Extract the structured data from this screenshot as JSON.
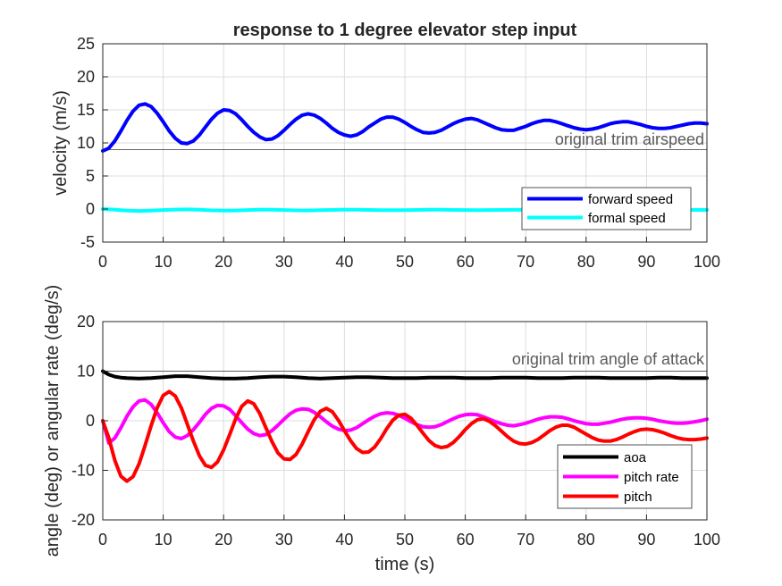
{
  "title": "response to 1 degree elevator step input",
  "chart_data": [
    {
      "type": "line",
      "xlabel": "",
      "ylabel": "velocity (m/s)",
      "xlim": [
        0,
        100
      ],
      "ylim": [
        -5,
        25
      ],
      "xticks": [
        0,
        10,
        20,
        30,
        40,
        50,
        60,
        70,
        80,
        90,
        100
      ],
      "yticks": [
        -5,
        0,
        5,
        10,
        15,
        20,
        25
      ],
      "grid": true,
      "legend_position": "bottom-right",
      "reference_line": {
        "y": 9,
        "label": "original trim airspeed"
      },
      "series": [
        {
          "name": "forward speed",
          "color": "#0000ff",
          "x": [
            0,
            1,
            2,
            3,
            4,
            5,
            6,
            7,
            8,
            9,
            10,
            11,
            12,
            13,
            14,
            15,
            16,
            17,
            18,
            19,
            20,
            21,
            22,
            23,
            24,
            25,
            26,
            27,
            28,
            29,
            30,
            31,
            32,
            33,
            34,
            35,
            36,
            37,
            38,
            39,
            40,
            41,
            42,
            43,
            44,
            45,
            46,
            47,
            48,
            49,
            50,
            51,
            52,
            53,
            54,
            55,
            56,
            57,
            58,
            59,
            60,
            61,
            62,
            63,
            64,
            65,
            66,
            67,
            68,
            69,
            70,
            71,
            72,
            73,
            74,
            75,
            76,
            77,
            78,
            79,
            80,
            81,
            82,
            83,
            84,
            85,
            86,
            87,
            88,
            89,
            90,
            91,
            92,
            93,
            94,
            95,
            96,
            97,
            98,
            99,
            100
          ],
          "values": [
            8.8,
            9.2,
            10.3,
            11.8,
            13.4,
            14.8,
            15.7,
            15.9,
            15.5,
            14.5,
            13.2,
            11.8,
            10.7,
            10.0,
            9.9,
            10.3,
            11.2,
            12.4,
            13.6,
            14.5,
            15.0,
            14.9,
            14.4,
            13.5,
            12.5,
            11.6,
            10.9,
            10.5,
            10.6,
            11.1,
            11.9,
            12.8,
            13.6,
            14.2,
            14.4,
            14.2,
            13.7,
            13.0,
            12.2,
            11.6,
            11.2,
            11.0,
            11.2,
            11.7,
            12.4,
            13.0,
            13.6,
            13.9,
            13.9,
            13.6,
            13.1,
            12.5,
            12.0,
            11.6,
            11.5,
            11.6,
            11.9,
            12.4,
            12.9,
            13.3,
            13.6,
            13.7,
            13.5,
            13.1,
            12.7,
            12.3,
            12.0,
            11.9,
            11.9,
            12.2,
            12.5,
            12.9,
            13.2,
            13.4,
            13.4,
            13.2,
            12.9,
            12.6,
            12.3,
            12.1,
            12.0,
            12.1,
            12.3,
            12.6,
            12.9,
            13.1,
            13.2,
            13.2,
            13.0,
            12.8,
            12.5,
            12.3,
            12.2,
            12.2,
            12.3,
            12.5,
            12.7,
            12.9,
            13.0,
            13.0,
            12.9
          ]
        },
        {
          "name": "formal speed",
          "color": "#00ffff",
          "x": [
            0,
            2,
            4,
            6,
            8,
            10,
            12,
            14,
            16,
            18,
            20,
            22,
            24,
            26,
            28,
            30,
            32,
            34,
            36,
            38,
            40,
            42,
            44,
            46,
            48,
            50,
            52,
            54,
            56,
            58,
            60,
            62,
            64,
            66,
            68,
            70,
            72,
            74,
            76,
            78,
            80,
            82,
            84,
            86,
            88,
            90,
            92,
            94,
            96,
            98,
            100
          ],
          "values": [
            0.0,
            -0.1,
            -0.25,
            -0.3,
            -0.25,
            -0.15,
            -0.08,
            -0.05,
            -0.1,
            -0.2,
            -0.25,
            -0.22,
            -0.15,
            -0.1,
            -0.1,
            -0.15,
            -0.2,
            -0.22,
            -0.18,
            -0.13,
            -0.1,
            -0.1,
            -0.13,
            -0.17,
            -0.18,
            -0.16,
            -0.13,
            -0.11,
            -0.11,
            -0.13,
            -0.15,
            -0.16,
            -0.15,
            -0.13,
            -0.12,
            -0.12,
            -0.13,
            -0.14,
            -0.15,
            -0.14,
            -0.13,
            -0.12,
            -0.12,
            -0.13,
            -0.14,
            -0.14,
            -0.14,
            -0.13,
            -0.13,
            -0.13,
            -0.13
          ]
        }
      ]
    },
    {
      "type": "line",
      "xlabel": "time (s)",
      "ylabel": "angle (deg) or angular rate (deg/s)",
      "xlim": [
        0,
        100
      ],
      "ylim": [
        -20,
        20
      ],
      "xticks": [
        0,
        10,
        20,
        30,
        40,
        50,
        60,
        70,
        80,
        90,
        100
      ],
      "yticks": [
        -20,
        -10,
        0,
        10,
        20
      ],
      "grid": true,
      "legend_position": "bottom-right",
      "reference_line": {
        "y": 10,
        "label": "original trim angle of attack"
      },
      "series": [
        {
          "name": "aoa",
          "color": "#000000",
          "x": [
            0,
            1,
            2,
            3,
            4,
            6,
            8,
            10,
            12,
            14,
            16,
            18,
            20,
            22,
            24,
            26,
            28,
            30,
            32,
            34,
            36,
            38,
            40,
            42,
            44,
            46,
            48,
            50,
            52,
            54,
            56,
            58,
            60,
            62,
            64,
            66,
            68,
            70,
            72,
            74,
            76,
            78,
            80,
            82,
            84,
            86,
            88,
            90,
            92,
            94,
            96,
            98,
            100
          ],
          "values": [
            10.0,
            9.3,
            8.9,
            8.7,
            8.6,
            8.5,
            8.6,
            8.8,
            9.0,
            9.0,
            8.8,
            8.6,
            8.5,
            8.5,
            8.6,
            8.8,
            8.9,
            8.9,
            8.8,
            8.6,
            8.5,
            8.6,
            8.7,
            8.8,
            8.8,
            8.7,
            8.6,
            8.6,
            8.6,
            8.7,
            8.7,
            8.7,
            8.6,
            8.6,
            8.6,
            8.7,
            8.7,
            8.7,
            8.6,
            8.6,
            8.6,
            8.7,
            8.7,
            8.7,
            8.6,
            8.6,
            8.6,
            8.6,
            8.7,
            8.7,
            8.6,
            8.6,
            8.6
          ]
        },
        {
          "name": "pitch rate",
          "color": "#ff00ff",
          "x": [
            0,
            1,
            2,
            3,
            4,
            5,
            6,
            7,
            8,
            9,
            10,
            11,
            12,
            13,
            14,
            15,
            16,
            17,
            18,
            19,
            20,
            21,
            22,
            23,
            24,
            25,
            26,
            27,
            28,
            29,
            30,
            31,
            32,
            33,
            34,
            35,
            36,
            37,
            38,
            39,
            40,
            41,
            42,
            43,
            44,
            45,
            46,
            47,
            48,
            49,
            50,
            51,
            52,
            53,
            54,
            55,
            56,
            57,
            58,
            59,
            60,
            61,
            62,
            63,
            64,
            65,
            66,
            67,
            68,
            69,
            70,
            71,
            72,
            73,
            74,
            75,
            76,
            77,
            78,
            79,
            80,
            81,
            82,
            83,
            84,
            85,
            86,
            87,
            88,
            89,
            90,
            91,
            92,
            93,
            94,
            95,
            96,
            97,
            98,
            99,
            100
          ],
          "values": [
            0.0,
            -4.5,
            -3.5,
            -1.4,
            0.9,
            2.8,
            4.0,
            4.2,
            3.3,
            1.6,
            -0.4,
            -2.2,
            -3.3,
            -3.6,
            -3.0,
            -1.8,
            -0.3,
            1.3,
            2.5,
            3.1,
            3.0,
            2.3,
            1.0,
            -0.4,
            -1.7,
            -2.6,
            -3.0,
            -2.8,
            -2.0,
            -0.9,
            0.3,
            1.4,
            2.1,
            2.4,
            2.3,
            1.7,
            0.8,
            -0.2,
            -1.1,
            -1.7,
            -2.0,
            -1.9,
            -1.4,
            -0.6,
            0.2,
            0.9,
            1.4,
            1.6,
            1.5,
            1.1,
            0.5,
            -0.2,
            -0.8,
            -1.2,
            -1.3,
            -1.2,
            -0.8,
            -0.2,
            0.4,
            0.9,
            1.2,
            1.3,
            1.2,
            0.8,
            0.3,
            -0.2,
            -0.6,
            -0.9,
            -1.0,
            -0.8,
            -0.5,
            -0.1,
            0.3,
            0.6,
            0.8,
            0.8,
            0.7,
            0.4,
            0.0,
            -0.3,
            -0.6,
            -0.7,
            -0.7,
            -0.5,
            -0.3,
            0.0,
            0.3,
            0.5,
            0.6,
            0.6,
            0.5,
            0.3,
            0.0,
            -0.2,
            -0.4,
            -0.5,
            -0.5,
            -0.4,
            -0.2,
            0.0,
            0.3
          ]
        },
        {
          "name": "pitch",
          "color": "#ff0000",
          "x": [
            0,
            1,
            2,
            3,
            4,
            5,
            6,
            7,
            8,
            9,
            10,
            11,
            12,
            13,
            14,
            15,
            16,
            17,
            18,
            19,
            20,
            21,
            22,
            23,
            24,
            25,
            26,
            27,
            28,
            29,
            30,
            31,
            32,
            33,
            34,
            35,
            36,
            37,
            38,
            39,
            40,
            41,
            42,
            43,
            44,
            45,
            46,
            47,
            48,
            49,
            50,
            51,
            52,
            53,
            54,
            55,
            56,
            57,
            58,
            59,
            60,
            61,
            62,
            63,
            64,
            65,
            66,
            67,
            68,
            69,
            70,
            71,
            72,
            73,
            74,
            75,
            76,
            77,
            78,
            79,
            80,
            81,
            82,
            83,
            84,
            85,
            86,
            87,
            88,
            89,
            90,
            91,
            92,
            93,
            94,
            95,
            96,
            97,
            98,
            99,
            100
          ],
          "values": [
            0.0,
            -3.5,
            -8.0,
            -11.2,
            -12.2,
            -11.3,
            -8.7,
            -5.0,
            -1.0,
            2.6,
            5.1,
            5.9,
            5.0,
            2.6,
            -0.7,
            -4.1,
            -7.1,
            -9.0,
            -9.4,
            -8.3,
            -5.9,
            -2.8,
            0.4,
            2.9,
            4.0,
            3.4,
            1.4,
            -1.4,
            -4.2,
            -6.5,
            -7.7,
            -7.8,
            -6.8,
            -4.7,
            -2.2,
            0.2,
            1.9,
            2.5,
            1.8,
            0.1,
            -2.0,
            -4.0,
            -5.6,
            -6.4,
            -6.3,
            -5.3,
            -3.6,
            -1.6,
            0.1,
            1.1,
            1.3,
            0.5,
            -0.9,
            -2.5,
            -4.0,
            -5.0,
            -5.4,
            -5.2,
            -4.4,
            -3.2,
            -1.8,
            -0.6,
            0.2,
            0.4,
            -0.1,
            -1.0,
            -2.1,
            -3.2,
            -4.1,
            -4.6,
            -4.7,
            -4.4,
            -3.8,
            -2.9,
            -2.0,
            -1.3,
            -0.9,
            -0.9,
            -1.3,
            -2.0,
            -2.7,
            -3.4,
            -3.9,
            -4.1,
            -4.1,
            -3.8,
            -3.3,
            -2.7,
            -2.2,
            -1.8,
            -1.7,
            -1.8,
            -2.1,
            -2.5,
            -3.0,
            -3.4,
            -3.7,
            -3.8,
            -3.8,
            -3.7,
            -3.5
          ]
        }
      ]
    }
  ]
}
